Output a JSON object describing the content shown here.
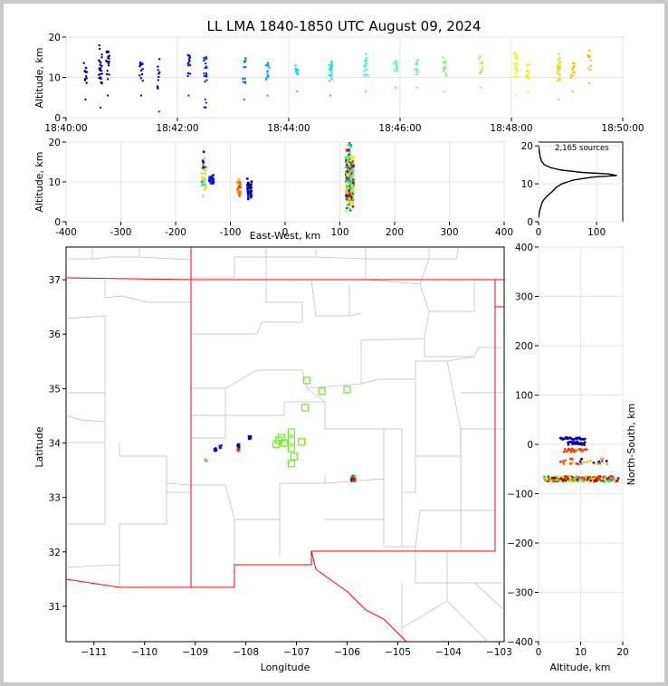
{
  "chart_data": {
    "type": "scatter",
    "title": "LL LMA 1840-1850 UTC August 09, 2024",
    "time_height": {
      "ylabel": "Altitude, km",
      "yticks": [
        "0",
        "10",
        "20"
      ],
      "ylim": [
        0,
        20
      ],
      "xticks": [
        "18:40:00",
        "18:42:00",
        "18:44:00",
        "18:46:00",
        "18:48:00",
        "18:50:00"
      ],
      "xlim_minutes": [
        0,
        10
      ],
      "columns": [
        {
          "t": 0.35,
          "low": 6,
          "high": 14,
          "dense": 12,
          "color": "#000090"
        },
        {
          "t": 0.62,
          "low": 4,
          "high": 18,
          "dense": 25,
          "color": "#000090"
        },
        {
          "t": 0.75,
          "low": 7,
          "high": 17,
          "dense": 18,
          "color": "#000090"
        },
        {
          "t": 1.35,
          "low": 7,
          "high": 15,
          "dense": 14,
          "color": "#0000d8"
        },
        {
          "t": 1.67,
          "low": 3,
          "high": 15,
          "dense": 12,
          "color": "#0000f0"
        },
        {
          "t": 2.2,
          "low": 7,
          "high": 18,
          "dense": 14,
          "color": "#0010ff"
        },
        {
          "t": 2.5,
          "low": 6,
          "high": 17,
          "dense": 18,
          "color": "#0030ff"
        },
        {
          "t": 2.5,
          "low": 1,
          "high": 5,
          "dense": 4,
          "color": "#0030ff"
        },
        {
          "t": 3.2,
          "low": 6,
          "high": 15,
          "dense": 12,
          "color": "#0070ff"
        },
        {
          "t": 3.62,
          "low": 7,
          "high": 15,
          "dense": 14,
          "color": "#00a8ff"
        },
        {
          "t": 4.15,
          "low": 8,
          "high": 13,
          "dense": 10,
          "color": "#00d8ff"
        },
        {
          "t": 4.75,
          "low": 7,
          "high": 15,
          "dense": 18,
          "color": "#00e8e8"
        },
        {
          "t": 5.38,
          "low": 8,
          "high": 16,
          "dense": 14,
          "color": "#20ffd8"
        },
        {
          "t": 5.92,
          "low": 9,
          "high": 15,
          "dense": 12,
          "color": "#40ffb0"
        },
        {
          "t": 6.3,
          "low": 9,
          "high": 15,
          "dense": 12,
          "color": "#58ff90"
        },
        {
          "t": 6.8,
          "low": 8,
          "high": 15,
          "dense": 14,
          "color": "#78ff70"
        },
        {
          "t": 7.45,
          "low": 9,
          "high": 16,
          "dense": 12,
          "color": "#a0ff40"
        },
        {
          "t": 8.08,
          "low": 7,
          "high": 18,
          "dense": 22,
          "color": "#e8ff00"
        },
        {
          "t": 8.3,
          "low": 8,
          "high": 14,
          "dense": 12,
          "color": "#f8f000"
        },
        {
          "t": 8.85,
          "low": 6,
          "high": 16,
          "dense": 20,
          "color": "#ffd000"
        },
        {
          "t": 9.1,
          "low": 8,
          "high": 15,
          "dense": 14,
          "color": "#ffc000"
        },
        {
          "t": 9.4,
          "low": 10,
          "high": 17,
          "dense": 10,
          "color": "#ffb000"
        }
      ]
    },
    "ew_height": {
      "ylabel": "Altitude, km",
      "xlabel": "East-West, km",
      "xticks": [
        "-400",
        "-300",
        "-200",
        "-100",
        "0",
        "100",
        "200",
        "300",
        "400"
      ],
      "xlim": [
        -400,
        400
      ],
      "yticks": [
        "0",
        "10",
        "20"
      ],
      "ylim": [
        0,
        20
      ],
      "clusters": [
        {
          "x": -148,
          "low": 6,
          "high": 18,
          "colors": [
            "#ff6000",
            "#20ffd8",
            "#0000f0",
            "#ffd000",
            "#a0ff40"
          ]
        },
        {
          "x": -135,
          "low": 9,
          "high": 12,
          "colors": [
            "#0000f0",
            "#0030ff"
          ]
        },
        {
          "x": -85,
          "low": 6,
          "high": 11,
          "colors": [
            "#ff3000",
            "#ff6000",
            "#ffb000"
          ]
        },
        {
          "x": -65,
          "low": 5,
          "high": 11,
          "colors": [
            "#000090",
            "#0000d8"
          ]
        },
        {
          "x": 118,
          "low": 2,
          "high": 20,
          "colors": [
            "#d00000",
            "#a80000",
            "#ff3000",
            "#ffd000",
            "#00a8ff",
            "#00e8e8",
            "#a0ff40",
            "#e8ff00",
            "#0070ff"
          ]
        }
      ]
    },
    "histogram": {
      "annotation": "2,165 sources",
      "xticks": [
        "0",
        "100"
      ],
      "yticks": [
        "0",
        "10",
        "20"
      ],
      "xlim": [
        0,
        145
      ],
      "ylim": [
        0,
        21
      ],
      "profile": [
        [
          0,
          1
        ],
        [
          1,
          2
        ],
        [
          2,
          3
        ],
        [
          4,
          4
        ],
        [
          6,
          5
        ],
        [
          10,
          6
        ],
        [
          16,
          7
        ],
        [
          24,
          8
        ],
        [
          30,
          9
        ],
        [
          40,
          10
        ],
        [
          60,
          11
        ],
        [
          95,
          11.8
        ],
        [
          135,
          12.2
        ],
        [
          120,
          12.6
        ],
        [
          75,
          13
        ],
        [
          40,
          13.6
        ],
        [
          22,
          14.2
        ],
        [
          10,
          15
        ],
        [
          5,
          16
        ],
        [
          3,
          17
        ],
        [
          2,
          18
        ],
        [
          1,
          19
        ],
        [
          0,
          20
        ]
      ]
    },
    "map": {
      "xlabel": "Longitude",
      "ylabel": "Latitude",
      "xticks": [
        "−111",
        "−110",
        "−109",
        "−108",
        "−107",
        "−106",
        "−105",
        "−104",
        "−103"
      ],
      "xlim": [
        -111.55,
        -102.9
      ],
      "yticks": [
        "31",
        "32",
        "33",
        "34",
        "35",
        "36",
        "37"
      ],
      "ylim": [
        30.35,
        37.6
      ],
      "stations": [
        [
          -107.35,
          34.05
        ],
        [
          -107.25,
          34.0
        ],
        [
          -107.1,
          34.2
        ],
        [
          -107.1,
          33.9
        ],
        [
          -107.05,
          33.75
        ],
        [
          -107.1,
          33.62
        ],
        [
          -106.9,
          34.02
        ],
        [
          -106.83,
          34.65
        ],
        [
          -106.8,
          35.15
        ],
        [
          -106.5,
          34.95
        ],
        [
          -106.0,
          34.98
        ],
        [
          -107.4,
          33.98
        ],
        [
          -107.1,
          34.05
        ],
        [
          -107.3,
          34.1
        ]
      ],
      "source_groups": [
        {
          "lon": -108.78,
          "lat": 33.68,
          "colors": [
            "#ff6000",
            "#20ffd8",
            "#ffd000"
          ]
        },
        {
          "lon": -108.6,
          "lat": 33.88,
          "colors": [
            "#0000f0"
          ]
        },
        {
          "lon": -108.5,
          "lat": 33.93,
          "colors": [
            "#0030ff"
          ]
        },
        {
          "lon": -108.15,
          "lat": 33.88,
          "colors": [
            "#ff3000"
          ]
        },
        {
          "lon": -108.15,
          "lat": 33.95,
          "colors": [
            "#000090"
          ]
        },
        {
          "lon": -107.92,
          "lat": 34.1,
          "colors": [
            "#000090",
            "#0000d8"
          ]
        },
        {
          "lon": -105.88,
          "lat": 33.35,
          "colors": [
            "#d00000",
            "#a80000",
            "#ff3000",
            "#ffd000",
            "#00e8e8"
          ]
        }
      ]
    },
    "ns_height": {
      "xlabel": "Altitude, km",
      "ylabel": "North-South, km",
      "xticks": [
        "0",
        "10",
        "20"
      ],
      "xlim": [
        0,
        20
      ],
      "yticks": [
        "400",
        "300",
        "200",
        "100",
        "0",
        "−100",
        "−200",
        "−300",
        "−400"
      ],
      "ylim": [
        -400,
        400
      ],
      "clusters": [
        {
          "y": -70,
          "spread": 5,
          "xlow": 1,
          "xhigh": 19,
          "colors": [
            "#d00000",
            "#a80000",
            "#ff3000",
            "#ffd000",
            "#00e8e8",
            "#a0ff40"
          ]
        },
        {
          "y": -35,
          "spread": 6,
          "xlow": 5,
          "xhigh": 17,
          "colors": [
            "#ff3000",
            "#ff6000",
            "#ffb000",
            "#0000f0"
          ]
        },
        {
          "y": -12,
          "spread": 3,
          "xlow": 6,
          "xhigh": 12,
          "colors": [
            "#ff3000",
            "#ff6000"
          ]
        },
        {
          "y": 2,
          "spread": 3,
          "xlow": 7,
          "xhigh": 11,
          "colors": [
            "#000090"
          ]
        },
        {
          "y": 12,
          "spread": 2,
          "xlow": 5,
          "xhigh": 11,
          "colors": [
            "#000090",
            "#0000d8"
          ]
        }
      ]
    }
  }
}
